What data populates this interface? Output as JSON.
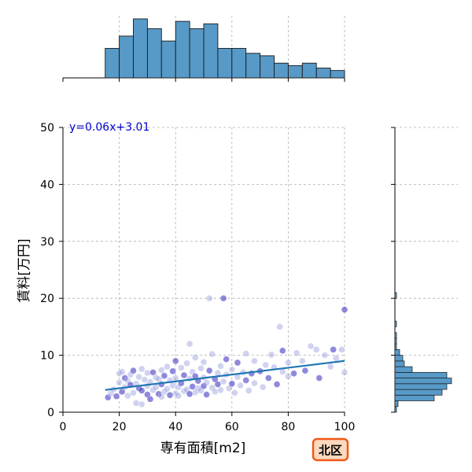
{
  "badge": {
    "label": "北区",
    "fill": "#fbd9bf",
    "border": "#f05a16",
    "text_color": "#000000"
  },
  "chart_data": {
    "type": "scatter",
    "xlabel": "専有面積[m2]",
    "ylabel": "賃料[万円]",
    "xlim": [
      0,
      100
    ],
    "ylim": [
      0,
      50
    ],
    "x_ticks": [
      0,
      20,
      40,
      60,
      80,
      100
    ],
    "y_ticks": [
      0,
      10,
      20,
      30,
      40,
      50
    ],
    "grid": true,
    "regression": {
      "label": "y=0.06x+3.01",
      "slope": 0.06,
      "intercept": 3.01,
      "x_range": [
        15,
        100
      ],
      "color": "#1f77b4",
      "label_color": "#0000cc"
    },
    "points": [
      [
        16,
        2.6
      ],
      [
        17,
        3.3
      ],
      [
        18,
        4.0
      ],
      [
        19,
        2.8
      ],
      [
        20,
        5.2
      ],
      [
        20,
        6.8
      ],
      [
        21,
        3.6
      ],
      [
        21,
        7.1
      ],
      [
        22,
        4.4
      ],
      [
        22,
        6.0
      ],
      [
        23,
        2.9
      ],
      [
        23,
        5.5
      ],
      [
        24,
        4.8
      ],
      [
        24,
        6.6
      ],
      [
        25,
        3.4
      ],
      [
        25,
        7.3
      ],
      [
        26,
        1.6
      ],
      [
        26,
        5.0
      ],
      [
        27,
        4.2
      ],
      [
        27,
        6.2
      ],
      [
        28,
        1.4
      ],
      [
        28,
        3.8
      ],
      [
        28,
        7.6
      ],
      [
        29,
        5.7
      ],
      [
        30,
        3.1
      ],
      [
        30,
        4.6
      ],
      [
        30,
        6.9
      ],
      [
        31,
        2.3
      ],
      [
        31,
        5.3
      ],
      [
        32,
        3.9
      ],
      [
        32,
        7.0
      ],
      [
        33,
        4.4
      ],
      [
        33,
        6.1
      ],
      [
        34,
        3.2
      ],
      [
        34,
        5.8
      ],
      [
        35,
        2.7
      ],
      [
        35,
        4.9
      ],
      [
        35,
        7.4
      ],
      [
        36,
        3.6
      ],
      [
        36,
        6.4
      ],
      [
        37,
        4.1
      ],
      [
        37,
        8.0
      ],
      [
        38,
        3.0
      ],
      [
        38,
        5.6
      ],
      [
        39,
        4.7
      ],
      [
        39,
        7.2
      ],
      [
        40,
        3.3
      ],
      [
        40,
        6.0
      ],
      [
        40,
        9.0
      ],
      [
        41,
        2.9
      ],
      [
        41,
        4.4
      ],
      [
        42,
        5.1
      ],
      [
        42,
        7.8
      ],
      [
        43,
        3.7
      ],
      [
        43,
        6.5
      ],
      [
        44,
        4.0
      ],
      [
        44,
        8.6
      ],
      [
        45,
        3.2
      ],
      [
        45,
        5.9
      ],
      [
        45,
        12.0
      ],
      [
        46,
        4.5
      ],
      [
        46,
        7.1
      ],
      [
        47,
        3.5
      ],
      [
        47,
        6.3
      ],
      [
        47,
        9.6
      ],
      [
        48,
        4.2
      ],
      [
        48,
        5.5
      ],
      [
        49,
        3.8
      ],
      [
        49,
        7.7
      ],
      [
        50,
        4.6
      ],
      [
        50,
        6.1
      ],
      [
        50,
        8.8
      ],
      [
        51,
        3.1
      ],
      [
        51,
        5.2
      ],
      [
        52,
        20.0
      ],
      [
        52,
        7.3
      ],
      [
        53,
        4.3
      ],
      [
        53,
        10.2
      ],
      [
        54,
        5.8
      ],
      [
        54,
        3.6
      ],
      [
        55,
        6.9
      ],
      [
        55,
        4.9
      ],
      [
        56,
        8.1
      ],
      [
        56,
        3.9
      ],
      [
        57,
        20.0
      ],
      [
        57,
        5.4
      ],
      [
        58,
        6.6
      ],
      [
        58,
        9.3
      ],
      [
        59,
        4.2
      ],
      [
        60,
        7.5
      ],
      [
        60,
        5.0
      ],
      [
        61,
        3.4
      ],
      [
        62,
        6.2
      ],
      [
        62,
        8.7
      ],
      [
        63,
        4.7
      ],
      [
        64,
        7.0
      ],
      [
        65,
        5.6
      ],
      [
        65,
        10.3
      ],
      [
        66,
        3.8
      ],
      [
        67,
        6.8
      ],
      [
        68,
        5.1
      ],
      [
        68,
        9.0
      ],
      [
        70,
        7.2
      ],
      [
        71,
        4.4
      ],
      [
        72,
        8.3
      ],
      [
        73,
        6.0
      ],
      [
        74,
        10.1
      ],
      [
        75,
        7.9
      ],
      [
        76,
        4.9
      ],
      [
        77,
        15.0
      ],
      [
        78,
        7.1
      ],
      [
        78,
        10.8
      ],
      [
        80,
        8.7
      ],
      [
        80,
        6.3
      ],
      [
        82,
        6.8
      ],
      [
        83,
        10.4
      ],
      [
        85,
        9.0
      ],
      [
        86,
        7.3
      ],
      [
        88,
        11.6
      ],
      [
        90,
        11.0
      ],
      [
        91,
        6.0
      ],
      [
        93,
        10.0
      ],
      [
        95,
        8.0
      ],
      [
        96,
        11.0
      ],
      [
        97,
        9.5
      ],
      [
        99,
        11.0
      ],
      [
        100,
        18.0
      ],
      [
        100,
        7.0
      ]
    ],
    "marginal_x": {
      "type": "histogram",
      "bin_edges": [
        15,
        20,
        25,
        30,
        35,
        40,
        45,
        50,
        55,
        60,
        65,
        70,
        75,
        80,
        85,
        90,
        95,
        100
      ],
      "counts": [
        12,
        17,
        24,
        20,
        15,
        23,
        20,
        22,
        12,
        12,
        10,
        9,
        6,
        5,
        6,
        4,
        3
      ]
    },
    "marginal_y": {
      "type": "histogram",
      "bin_edges": [
        0,
        1,
        2,
        3,
        4,
        5,
        6,
        7,
        8,
        9,
        10,
        11,
        12,
        13,
        14,
        15,
        16,
        17,
        18,
        19,
        20,
        21
      ],
      "counts": [
        1,
        2,
        25,
        30,
        33,
        36,
        33,
        11,
        6,
        5,
        3,
        1,
        1,
        1,
        0,
        1,
        0,
        0,
        0,
        0,
        1
      ]
    }
  }
}
